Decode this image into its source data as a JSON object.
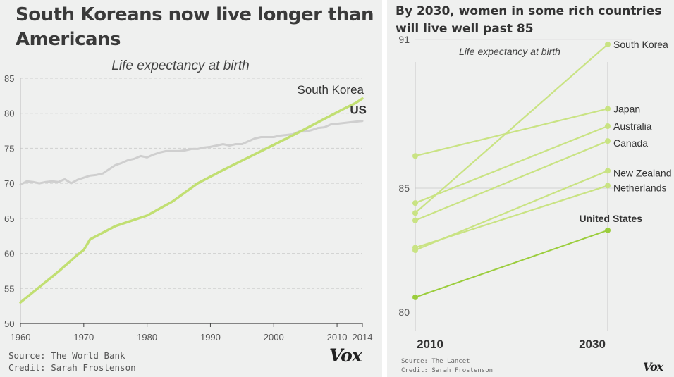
{
  "left": {
    "title": "South Koreans now live longer than Americans",
    "subtitle": "Life expectancy at birth",
    "source": "Source: The World Bank",
    "credit": "Credit: Sarah Frostenson",
    "logo": "Vox"
  },
  "right": {
    "title": "By 2030, women in some rich countries will live well past 85",
    "subtitle": "Life expectancy at birth",
    "source": "Source: The Lancet",
    "credit": "Credit: Sarah Frostenson",
    "logo": "Vox"
  },
  "colors": {
    "korea": "#c1df72",
    "us": "#cfcfcf",
    "country_light": "#c9e383",
    "united_states": "#9bcd3c",
    "panel_bg": "#eff0ef",
    "text": "#3a3a3a"
  },
  "chart_data": [
    {
      "type": "line",
      "title": "South Koreans now live longer than Americans",
      "subtitle": "Life expectancy at birth",
      "x_ticks": [
        1960,
        1970,
        1980,
        1990,
        2000,
        2010,
        2014
      ],
      "y_ticks": [
        50,
        55,
        60,
        65,
        70,
        75,
        80,
        85
      ],
      "xlim": [
        1960,
        2014
      ],
      "ylim": [
        50,
        85
      ],
      "grid": "horizontal dashed",
      "series": [
        {
          "name": "US",
          "x": [
            1960,
            1961,
            1962,
            1963,
            1964,
            1965,
            1966,
            1967,
            1968,
            1969,
            1970,
            1971,
            1972,
            1973,
            1974,
            1975,
            1976,
            1977,
            1978,
            1979,
            1980,
            1981,
            1982,
            1983,
            1984,
            1985,
            1986,
            1987,
            1988,
            1989,
            1990,
            1991,
            1992,
            1993,
            1994,
            1995,
            1996,
            1997,
            1998,
            1999,
            2000,
            2001,
            2002,
            2003,
            2004,
            2005,
            2006,
            2007,
            2008,
            2009,
            2010,
            2011,
            2012,
            2013,
            2014
          ],
          "y": [
            69.8,
            70.3,
            70.2,
            70.0,
            70.2,
            70.3,
            70.2,
            70.6,
            70.0,
            70.5,
            70.8,
            71.1,
            71.2,
            71.4,
            72.0,
            72.6,
            72.9,
            73.3,
            73.5,
            73.9,
            73.7,
            74.1,
            74.4,
            74.6,
            74.6,
            74.6,
            74.7,
            74.9,
            74.9,
            75.1,
            75.2,
            75.4,
            75.6,
            75.4,
            75.6,
            75.6,
            76.0,
            76.4,
            76.6,
            76.6,
            76.6,
            76.8,
            76.9,
            77.0,
            77.4,
            77.4,
            77.6,
            77.9,
            78.0,
            78.4,
            78.5,
            78.6,
            78.7,
            78.8,
            78.9
          ]
        },
        {
          "name": "South Korea",
          "x": [
            1960,
            1963,
            1966,
            1969,
            1970,
            1971,
            1975,
            1980,
            1984,
            1988,
            1992,
            1996,
            2000,
            2004,
            2008,
            2011,
            2013,
            2014
          ],
          "y": [
            53.0,
            55.2,
            57.4,
            59.8,
            60.5,
            62.0,
            63.9,
            65.4,
            67.4,
            70.0,
            71.9,
            73.7,
            75.5,
            77.3,
            79.2,
            80.6,
            81.5,
            82.1
          ]
        }
      ]
    },
    {
      "type": "line",
      "title": "By 2030, women in some rich countries will live well past 85",
      "subtitle": "Life expectancy at birth",
      "x_ticks": [
        2010,
        2030
      ],
      "y_ticks": [
        80,
        85,
        91
      ],
      "xlim": [
        2010,
        2030
      ],
      "ylim": [
        80,
        91
      ],
      "series": [
        {
          "name": "South Korea",
          "x": [
            2010,
            2030
          ],
          "y": [
            84.0,
            90.8
          ]
        },
        {
          "name": "Japan",
          "x": [
            2010,
            2030
          ],
          "y": [
            86.3,
            88.2
          ]
        },
        {
          "name": "Australia",
          "x": [
            2010,
            2030
          ],
          "y": [
            84.4,
            87.5
          ]
        },
        {
          "name": "Canada",
          "x": [
            2010,
            2030
          ],
          "y": [
            83.7,
            86.9
          ]
        },
        {
          "name": "New Zealand",
          "x": [
            2010,
            2030
          ],
          "y": [
            82.5,
            85.7
          ]
        },
        {
          "name": "Netherlands",
          "x": [
            2010,
            2030
          ],
          "y": [
            82.6,
            85.1
          ]
        },
        {
          "name": "United States",
          "x": [
            2010,
            2030
          ],
          "y": [
            80.6,
            83.3
          ]
        }
      ]
    }
  ]
}
